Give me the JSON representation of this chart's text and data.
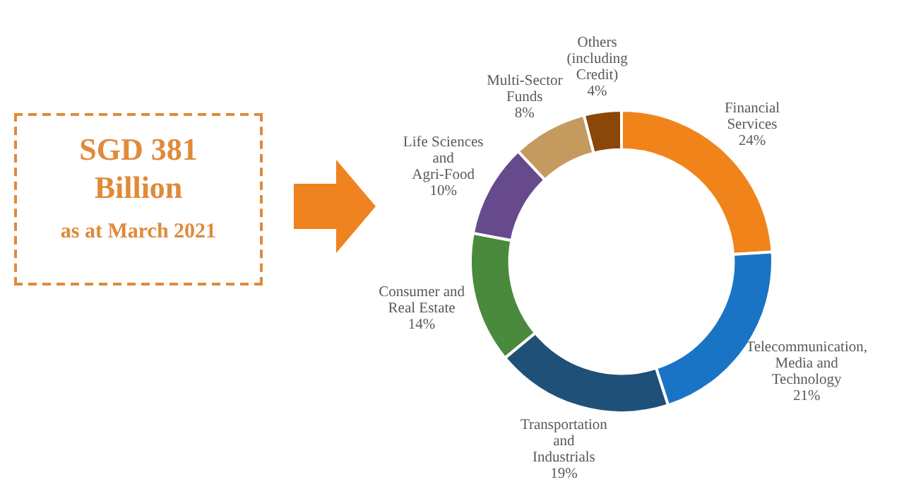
{
  "chart_data": {
    "type": "donut",
    "title": "SGD 381 Billion",
    "subtitle": "as at March 2021",
    "categories": [
      "Financial Services",
      "Telecommunication, Media and Technology",
      "Transportation and Industrials",
      "Consumer and Real Estate",
      "Life Sciences and Agri-Food",
      "Multi-Sector Funds",
      "Others (including Credit)"
    ],
    "values": [
      24,
      21,
      19,
      14,
      10,
      8,
      4
    ],
    "value_labels": [
      "24%",
      "21%",
      "19%",
      "14%",
      "10%",
      "8%",
      "4%"
    ],
    "colors": [
      "#f0841a",
      "#1a74c6",
      "#1f5078",
      "#4a8a3c",
      "#674a8c",
      "#c49a5e",
      "#8a4707"
    ],
    "legend": false
  }
}
